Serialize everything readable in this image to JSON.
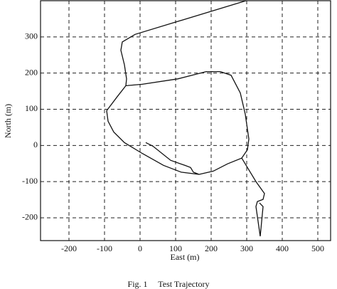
{
  "chart_data": {
    "type": "line",
    "caption": "Fig. 1     Test Trajectory",
    "xlabel": "East (m)",
    "ylabel": "North (m)",
    "xlim": [
      -280,
      536
    ],
    "ylim": [
      -263,
      400
    ],
    "xticks": [
      -200,
      -100,
      0,
      100,
      200,
      300,
      400,
      500
    ],
    "yticks": [
      -200,
      -100,
      0,
      100,
      200,
      300
    ],
    "grid": true,
    "series": [
      {
        "color": "#111111",
        "x": [
          298,
          -14,
          -50,
          -54,
          -44,
          -38,
          -40,
          -64,
          -94,
          -90,
          -74,
          -44,
          6,
          66,
          116,
          166,
          206,
          246,
          286,
          302,
          306,
          296,
          282,
          256,
          226,
          186,
          106,
          6,
          -40,
          null,
          16,
          36,
          86,
          126,
          142,
          150,
          166,
          null,
          286,
          302,
          326,
          350,
          346,
          330,
          326,
          338,
          346,
          336
        ],
        "y": [
          400,
          307,
          286,
          263,
          223,
          184,
          165,
          135,
          96,
          67,
          37,
          8,
          -22,
          -55,
          -74,
          -80,
          -71,
          -51,
          -35,
          -12,
          18,
          86,
          145,
          194,
          204,
          204,
          184,
          169,
          165,
          null,
          8,
          -2,
          -41,
          -55,
          -61,
          -74,
          -80,
          null,
          -35,
          -61,
          -100,
          -133,
          -149,
          -155,
          -169,
          -251,
          -169,
          -159
        ]
      }
    ]
  }
}
